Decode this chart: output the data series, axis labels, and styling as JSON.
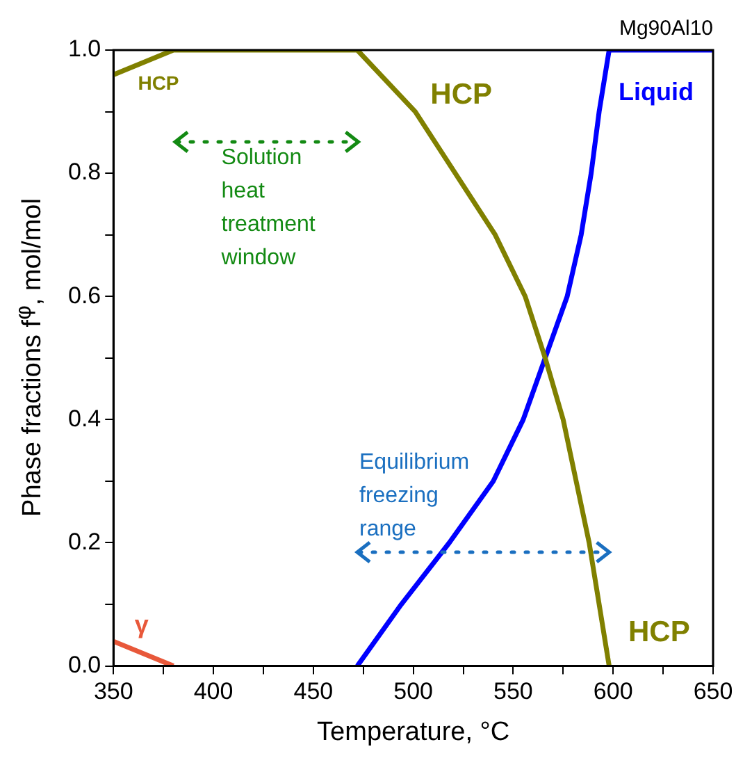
{
  "chart_data": {
    "type": "line",
    "title": "Mg90Al10",
    "xlabel": "Temperature, °C",
    "ylabel": "Phase fractions f$^{φ}$,  mol/mol",
    "annotations": [
      "Solution heat treatment window",
      "Equilibrium freezing range"
    ],
    "xlim": [
      350,
      650
    ],
    "ylim": [
      0,
      1.0
    ],
    "xticks": [
      350,
      {
        "value": 375,
        "label": null
      },
      400,
      {
        "value": 425,
        "label": null
      },
      450,
      {
        "value": 475,
        "label": null
      },
      500,
      {
        "value": 525,
        "label": null
      },
      550,
      {
        "value": 575,
        "label": null
      },
      600,
      {
        "value": 625,
        "label": null
      },
      650
    ],
    "yticks": [
      {
        "value": 0,
        "label": "0.0"
      },
      {
        "value": 0.1,
        "label": null
      },
      0.2,
      {
        "value": 0.3,
        "label": null
      },
      0.4,
      {
        "value": 0.5,
        "label": null
      },
      0.6,
      {
        "value": 0.7,
        "label": null
      },
      0.8,
      {
        "value": 0.9,
        "label": null
      },
      {
        "value": 1,
        "label": "1.0"
      }
    ],
    "grid": false,
    "legend": false,
    "marker": "none",
    "line_style": "solid",
    "series": [
      {
        "name": "HCP",
        "color": "#808000",
        "x": [
          350,
          380,
          472,
          501,
          521,
          541,
          556,
          566,
          575,
          588,
          593,
          598
        ],
        "values": [
          0.96,
          1.0,
          1.0,
          0.9,
          0.8,
          0.7,
          0.6,
          0.5,
          0.4,
          0.2,
          0.1,
          0
        ]
      },
      {
        "name": "Liquid",
        "color": "#0000ff",
        "x": [
          472,
          494,
          518,
          540,
          555,
          566,
          577,
          584,
          589,
          593,
          598,
          650
        ],
        "values": [
          0,
          0.1,
          0.2,
          0.3,
          0.4,
          0.5,
          0.6,
          0.7,
          0.8,
          0.9,
          1.0,
          1.0
        ]
      },
      {
        "name": "γ",
        "color": "#e8583a",
        "x": [
          350,
          380
        ],
        "values": [
          0.04,
          0
        ]
      }
    ]
  }
}
